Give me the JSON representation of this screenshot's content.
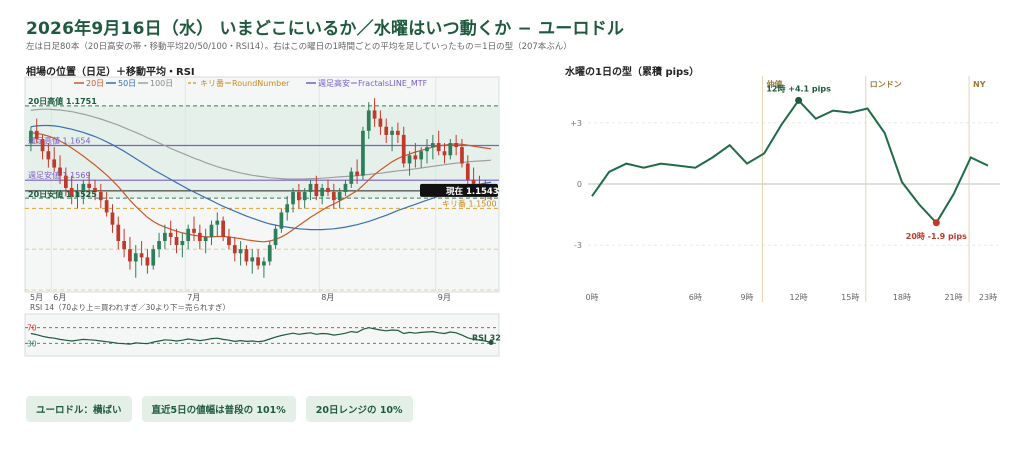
{
  "header": {
    "title": "2026年9月16日（水） いまどこにいるか／水曜はいつ動くか − ユーロドル",
    "subtitle": "左は日足80本（20日高安の帯・移動平均20/50/100・RSI14）。右はこの曜日の1時間ごとの平均を足していったもの＝1日の型（207本ぶん）"
  },
  "left_section_title": "相場の位置（日足）＋移動平均・RSI",
  "right_section_title": "水曜の1日の型（累積 pips）",
  "legend": {
    "ma20": "20日",
    "ma50": "50日",
    "ma100": "100日",
    "round": "キリ番＝RoundNumber",
    "fractal": "週足高安＝FractalsLINE_MTF"
  },
  "levels": {
    "high20": "20日高値 1.1751",
    "weekly_high": "週足高値 1.1654",
    "weekly_low": "週足安値 1.1569",
    "low20": "20日安値 1.1525",
    "current": "現在 1.1543",
    "round": "キリ番 1.1500"
  },
  "months": [
    "5月",
    "6月",
    "7月",
    "8月",
    "9月"
  ],
  "rsi": {
    "caption": "RSI 14（70より上＝買われすぎ／30より下＝売られすぎ）",
    "upper": "70",
    "lower": "30",
    "last_label": "RSI 32"
  },
  "colors": {
    "accent": "#1f5a3e",
    "up": "#2e7d5b",
    "down": "#c0392b",
    "ma20": "#c65a2e",
    "ma50": "#3a6fb0",
    "ma100": "#a0a0a0",
    "fractal": "#7b5ec9",
    "round": "#e0a030"
  },
  "chart_data": [
    {
      "type": "candlestick",
      "title": "相場の位置（日足）＋移動平均・RSI",
      "ylim": [
        1.13,
        1.179
      ],
      "levels": {
        "high20": 1.1751,
        "weekly_high": 1.1654,
        "weekly_low": 1.1569,
        "low20": 1.1525,
        "current": 1.1543,
        "round": 1.15
      },
      "candles": [
        [
          1.166,
          1.17,
          1.164,
          1.169
        ],
        [
          1.169,
          1.172,
          1.166,
          1.167
        ],
        [
          1.167,
          1.168,
          1.162,
          1.164
        ],
        [
          1.164,
          1.166,
          1.16,
          1.162
        ],
        [
          1.162,
          1.165,
          1.159,
          1.16
        ],
        [
          1.16,
          1.163,
          1.156,
          1.158
        ],
        [
          1.158,
          1.16,
          1.153,
          1.155
        ],
        [
          1.155,
          1.158,
          1.151,
          1.153
        ],
        [
          1.153,
          1.156,
          1.15,
          1.154
        ],
        [
          1.154,
          1.157,
          1.151,
          1.156
        ],
        [
          1.156,
          1.159,
          1.153,
          1.155
        ],
        [
          1.155,
          1.157,
          1.152,
          1.154
        ],
        [
          1.154,
          1.156,
          1.15,
          1.152
        ],
        [
          1.152,
          1.154,
          1.148,
          1.149
        ],
        [
          1.149,
          1.151,
          1.144,
          1.146
        ],
        [
          1.146,
          1.148,
          1.14,
          1.142
        ],
        [
          1.142,
          1.145,
          1.138,
          1.14
        ],
        [
          1.14,
          1.143,
          1.135,
          1.137
        ],
        [
          1.137,
          1.141,
          1.133,
          1.139
        ],
        [
          1.139,
          1.142,
          1.136,
          1.138
        ],
        [
          1.138,
          1.14,
          1.134,
          1.136
        ],
        [
          1.136,
          1.141,
          1.135,
          1.14
        ],
        [
          1.14,
          1.144,
          1.138,
          1.142
        ],
        [
          1.142,
          1.146,
          1.14,
          1.144
        ],
        [
          1.144,
          1.147,
          1.141,
          1.143
        ],
        [
          1.143,
          1.145,
          1.139,
          1.141
        ],
        [
          1.141,
          1.144,
          1.138,
          1.142
        ],
        [
          1.142,
          1.146,
          1.14,
          1.145
        ],
        [
          1.145,
          1.148,
          1.142,
          1.144
        ],
        [
          1.144,
          1.146,
          1.14,
          1.142
        ],
        [
          1.142,
          1.145,
          1.139,
          1.143
        ],
        [
          1.143,
          1.147,
          1.141,
          1.146
        ],
        [
          1.146,
          1.149,
          1.143,
          1.147
        ],
        [
          1.147,
          1.148,
          1.142,
          1.143
        ],
        [
          1.143,
          1.145,
          1.14,
          1.141
        ],
        [
          1.141,
          1.143,
          1.137,
          1.139
        ],
        [
          1.139,
          1.142,
          1.136,
          1.14
        ],
        [
          1.14,
          1.141,
          1.136,
          1.137
        ],
        [
          1.137,
          1.14,
          1.134,
          1.138
        ],
        [
          1.138,
          1.14,
          1.135,
          1.136
        ],
        [
          1.136,
          1.138,
          1.133,
          1.137
        ],
        [
          1.137,
          1.142,
          1.136,
          1.141
        ],
        [
          1.141,
          1.146,
          1.14,
          1.145
        ],
        [
          1.145,
          1.15,
          1.144,
          1.149
        ],
        [
          1.149,
          1.153,
          1.147,
          1.151
        ],
        [
          1.151,
          1.155,
          1.149,
          1.154
        ],
        [
          1.154,
          1.156,
          1.15,
          1.152
        ],
        [
          1.152,
          1.155,
          1.15,
          1.154
        ],
        [
          1.154,
          1.157,
          1.152,
          1.156
        ],
        [
          1.156,
          1.158,
          1.152,
          1.153
        ],
        [
          1.153,
          1.156,
          1.151,
          1.155
        ],
        [
          1.155,
          1.157,
          1.153,
          1.154
        ],
        [
          1.154,
          1.156,
          1.15,
          1.152
        ],
        [
          1.152,
          1.155,
          1.15,
          1.154
        ],
        [
          1.154,
          1.157,
          1.153,
          1.156
        ],
        [
          1.156,
          1.16,
          1.155,
          1.159
        ],
        [
          1.159,
          1.162,
          1.156,
          1.158
        ],
        [
          1.158,
          1.17,
          1.157,
          1.169
        ],
        [
          1.169,
          1.176,
          1.167,
          1.174
        ],
        [
          1.174,
          1.177,
          1.17,
          1.172
        ],
        [
          1.172,
          1.174,
          1.168,
          1.17
        ],
        [
          1.17,
          1.172,
          1.166,
          1.168
        ],
        [
          1.168,
          1.17,
          1.164,
          1.169
        ],
        [
          1.169,
          1.171,
          1.166,
          1.168
        ],
        [
          1.168,
          1.17,
          1.16,
          1.161
        ],
        [
          1.161,
          1.164,
          1.158,
          1.163
        ],
        [
          1.163,
          1.166,
          1.16,
          1.162
        ],
        [
          1.162,
          1.165,
          1.16,
          1.164
        ],
        [
          1.164,
          1.167,
          1.161,
          1.165
        ],
        [
          1.165,
          1.168,
          1.162,
          1.166
        ],
        [
          1.166,
          1.169,
          1.163,
          1.164
        ],
        [
          1.164,
          1.166,
          1.161,
          1.163
        ],
        [
          1.163,
          1.167,
          1.162,
          1.166
        ],
        [
          1.166,
          1.168,
          1.163,
          1.165
        ],
        [
          1.165,
          1.167,
          1.16,
          1.161
        ],
        [
          1.161,
          1.163,
          1.156,
          1.157
        ],
        [
          1.157,
          1.16,
          1.153,
          1.156
        ],
        [
          1.156,
          1.158,
          1.153,
          1.155
        ],
        [
          1.155,
          1.157,
          1.152,
          1.1545
        ],
        [
          1.1545,
          1.156,
          1.152,
          1.1543
        ]
      ],
      "ma20": [
        1.1685,
        1.1684,
        1.1681,
        1.1677,
        1.1672,
        1.1665,
        1.1657,
        1.1648,
        1.1638,
        1.1628,
        1.1617,
        1.1606,
        1.1594,
        1.1582,
        1.1568,
        1.1553,
        1.1537,
        1.152,
        1.1505,
        1.1491,
        1.1478,
        1.1468,
        1.146,
        1.1454,
        1.1449,
        1.1444,
        1.144,
        1.1437,
        1.1434,
        1.1432,
        1.143,
        1.143,
        1.1431,
        1.1431,
        1.143,
        1.1428,
        1.1426,
        1.1423,
        1.1421,
        1.1419,
        1.1418,
        1.142,
        1.1424,
        1.143,
        1.1438,
        1.1448,
        1.1458,
        1.1468,
        1.1478,
        1.1487,
        1.1496,
        1.1504,
        1.1511,
        1.1518,
        1.1526,
        1.1535,
        1.1543,
        1.1556,
        1.157,
        1.1583,
        1.1594,
        1.1604,
        1.1614,
        1.1622,
        1.1628,
        1.1633,
        1.1638,
        1.1642,
        1.1646,
        1.165,
        1.1653,
        1.1655,
        1.1657,
        1.1658,
        1.1657,
        1.1655,
        1.1652,
        1.165,
        1.1648,
        1.1646
      ],
      "ma50": [
        1.17,
        1.1702,
        1.1703,
        1.1703,
        1.1702,
        1.17,
        1.1697,
        1.1694,
        1.169,
        1.1686,
        1.1681,
        1.1676,
        1.167,
        1.1663,
        1.1656,
        1.1648,
        1.164,
        1.1631,
        1.1622,
        1.1613,
        1.1604,
        1.1595,
        1.1587,
        1.1579,
        1.1571,
        1.1563,
        1.1555,
        1.1547,
        1.154,
        1.1533,
        1.1526,
        1.1519,
        1.1512,
        1.1505,
        1.1499,
        1.1493,
        1.1487,
        1.1481,
        1.1476,
        1.1471,
        1.1466,
        1.1462,
        1.1459,
        1.1456,
        1.1454,
        1.1452,
        1.145,
        1.1449,
        1.1448,
        1.1448,
        1.1448,
        1.1449,
        1.145,
        1.1452,
        1.1454,
        1.1457,
        1.146,
        1.1464,
        1.1468,
        1.1473,
        1.1478,
        1.1483,
        1.1489,
        1.1495,
        1.15,
        1.1505,
        1.151,
        1.1515,
        1.152,
        1.1525,
        1.153,
        1.1535,
        1.154,
        1.1545,
        1.1549,
        1.1553,
        1.1556,
        1.1559,
        1.1562,
        1.1564
      ],
      "ma100": [
        1.174,
        1.1742,
        1.1743,
        1.1743,
        1.1742,
        1.1741,
        1.1739,
        1.1737,
        1.1734,
        1.1731,
        1.1727,
        1.1723,
        1.1719,
        1.1714,
        1.1709,
        1.1704,
        1.1698,
        1.1692,
        1.1686,
        1.168,
        1.1673,
        1.1667,
        1.166,
        1.1654,
        1.1647,
        1.1641,
        1.1635,
        1.1629,
        1.1623,
        1.1618,
        1.1612,
        1.1607,
        1.1602,
        1.1598,
        1.1594,
        1.159,
        1.1587,
        1.1584,
        1.1581,
        1.1579,
        1.1577,
        1.1575,
        1.1574,
        1.1573,
        1.1572,
        1.1572,
        1.1572,
        1.1572,
        1.1573,
        1.1573,
        1.1574,
        1.1575,
        1.1576,
        1.1577,
        1.1578,
        1.1579,
        1.158,
        1.1582,
        1.1583,
        1.1585,
        1.1586,
        1.1588,
        1.159,
        1.1592,
        1.1593,
        1.1595,
        1.1597,
        1.1599,
        1.1601,
        1.1603,
        1.1605,
        1.1607,
        1.1609,
        1.1611,
        1.1612,
        1.1614,
        1.1615,
        1.1616,
        1.1617,
        1.1618
      ],
      "rsi_ylim": [
        0,
        100
      ],
      "rsi": [
        55,
        52,
        48,
        45,
        43,
        40,
        38,
        36,
        38,
        40,
        39,
        38,
        36,
        34,
        32,
        30,
        29,
        28,
        31,
        30,
        29,
        33,
        36,
        39,
        38,
        36,
        38,
        41,
        39,
        37,
        39,
        42,
        43,
        40,
        38,
        35,
        37,
        35,
        36,
        34,
        36,
        41,
        46,
        50,
        53,
        56,
        53,
        55,
        57,
        53,
        55,
        54,
        51,
        53,
        56,
        60,
        58,
        66,
        70,
        67,
        64,
        62,
        64,
        63,
        55,
        58,
        56,
        58,
        59,
        60,
        57,
        55,
        59,
        57,
        51,
        44,
        40,
        38,
        36,
        32
      ]
    },
    {
      "type": "line",
      "title": "水曜の1日の型（累積 pips）",
      "x": [
        0,
        1,
        2,
        3,
        4,
        5,
        6,
        7,
        8,
        9,
        10,
        11,
        12,
        13,
        14,
        15,
        16,
        17,
        18,
        19,
        20,
        21,
        22,
        23
      ],
      "values": [
        -0.6,
        0.6,
        1.0,
        0.8,
        1.0,
        0.9,
        0.8,
        1.3,
        1.9,
        1.0,
        1.5,
        2.9,
        4.1,
        3.2,
        3.6,
        3.5,
        3.7,
        2.5,
        0.1,
        -1.0,
        -1.9,
        -0.5,
        1.3,
        0.9
      ],
      "ylim": [
        -5,
        5
      ],
      "yticks": [
        3,
        0,
        -3
      ],
      "ytick_labels": [
        "+3",
        "0",
        "-3"
      ],
      "xticks": [
        0,
        6,
        9,
        12,
        15,
        18,
        21,
        23
      ],
      "xtick_labels": [
        "0時",
        "6時",
        "9時",
        "12時",
        "15時",
        "18時",
        "21時",
        "23時"
      ],
      "sessions": [
        {
          "at": 9.9,
          "label": "仲値"
        },
        {
          "at": 15.9,
          "label": "ロンドン"
        },
        {
          "at": 21.9,
          "label": "NY"
        }
      ],
      "annotations": [
        {
          "x": 12,
          "y": 4.1,
          "label": "12時 +4.1 pips",
          "color": "#1f5a3e"
        },
        {
          "x": 20,
          "y": -1.9,
          "label": "20時 -1.9 pips",
          "color": "#c0392b"
        }
      ]
    }
  ],
  "badges": [
    "ユーロドル：横ばい",
    "直近5日の値幅は普段の 101%",
    "20日レンジの 10%"
  ]
}
